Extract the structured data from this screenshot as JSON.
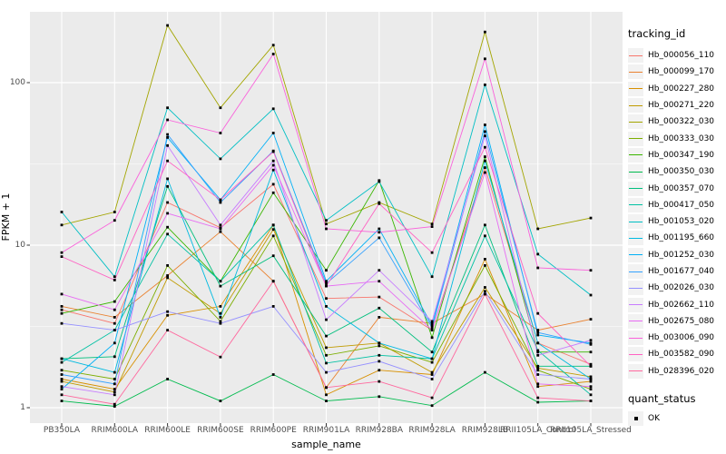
{
  "chart_data": {
    "type": "line",
    "title": "",
    "xlabel": "sample_name",
    "ylabel": "FPKM + 1",
    "y_scale": "log10",
    "ylim": [
      1,
      270
    ],
    "y_ticks": [
      {
        "label": "1",
        "value": 1
      },
      {
        "label": "10",
        "value": 10
      },
      {
        "label": "100",
        "value": 100
      }
    ],
    "y_minor_ticks": [
      3.162,
      31.62
    ],
    "grid": "on",
    "legend_position": "right",
    "categories": [
      "PB350LA",
      "RRIM600LA",
      "RRIM600LE",
      "RRIM600SE",
      "RRIM600PE",
      "RRIM901LA",
      "RRIM928BA",
      "RRIM928LA",
      "RRIM928LB",
      "RRII105LA_Control",
      "RRII105LA_Stressed"
    ],
    "series": [
      {
        "name": "Hb_000056_110",
        "color": "#F8766D",
        "values": [
          4.0,
          3.3,
          18.3,
          12.8,
          23.7,
          4.7,
          4.8,
          3.0,
          30,
          2.5,
          1.85
        ]
      },
      {
        "name": "Hb_000099_170",
        "color": "#EA8331",
        "values": [
          4.2,
          3.6,
          6.5,
          12.1,
          6.0,
          1.33,
          3.6,
          3.3,
          5.0,
          3.0,
          3.5
        ]
      },
      {
        "name": "Hb_000227_280",
        "color": "#D89000",
        "values": [
          1.5,
          1.3,
          3.7,
          4.2,
          13.3,
          1.2,
          1.7,
          1.6,
          8.2,
          1.35,
          1.45
        ]
      },
      {
        "name": "Hb_000271_220",
        "color": "#C09B00",
        "values": [
          1.45,
          1.25,
          6.3,
          3.8,
          12.5,
          2.34,
          2.5,
          1.65,
          5.5,
          1.75,
          1.55
        ]
      },
      {
        "name": "Hb_000322_030",
        "color": "#A3A500",
        "values": [
          13.3,
          16,
          225,
          70,
          170,
          13.5,
          18.3,
          13.5,
          205,
          12.6,
          14.7
        ]
      },
      {
        "name": "Hb_000333_030",
        "color": "#7CAE00",
        "values": [
          1.7,
          1.5,
          7.5,
          3.4,
          11.4,
          2.1,
          2.4,
          1.9,
          7.5,
          1.7,
          1.3
        ]
      },
      {
        "name": "Hb_000347_190",
        "color": "#39B600",
        "values": [
          3.8,
          4.5,
          12.9,
          6.0,
          21,
          7.0,
          25,
          2.7,
          35,
          2.2,
          2.2
        ]
      },
      {
        "name": "Hb_000350_030",
        "color": "#00BB4E",
        "values": [
          1.1,
          1.02,
          1.5,
          1.1,
          1.6,
          1.1,
          1.17,
          1.03,
          1.65,
          1.08,
          1.1
        ]
      },
      {
        "name": "Hb_000357_070",
        "color": "#00BF7D",
        "values": [
          2.0,
          2.06,
          23,
          5.6,
          8.6,
          2.76,
          4.1,
          2.2,
          13.3,
          1.8,
          1.8
        ]
      },
      {
        "name": "Hb_000417_050",
        "color": "#00C1A3",
        "values": [
          1.9,
          3.0,
          11.7,
          6.0,
          13.3,
          1.88,
          2.1,
          2.0,
          11.4,
          2.25,
          1.2
        ]
      },
      {
        "name": "Hb_001053_020",
        "color": "#00BFC4",
        "values": [
          16,
          6.4,
          70,
          34,
          69,
          14.2,
          24.6,
          6.4,
          97,
          8.8,
          4.93
        ]
      },
      {
        "name": "Hb_001195_660",
        "color": "#00BAE0",
        "values": [
          2.0,
          1.65,
          25.6,
          3.6,
          29,
          4.2,
          2.5,
          2.0,
          33,
          2.5,
          1.5
        ]
      },
      {
        "name": "Hb_001252_030",
        "color": "#00B0F6",
        "values": [
          1.3,
          2.5,
          46,
          19,
          49,
          6.0,
          12.6,
          3.2,
          55,
          2.8,
          2.5
        ]
      },
      {
        "name": "Hb_001677_040",
        "color": "#35A2FF",
        "values": [
          1.6,
          1.4,
          48,
          18.3,
          38,
          5.8,
          11.1,
          3.1,
          50,
          2.9,
          2.45
        ]
      },
      {
        "name": "Hb_002026_030",
        "color": "#9590FF",
        "values": [
          3.3,
          3.0,
          3.9,
          3.3,
          4.2,
          1.65,
          1.93,
          1.5,
          5.2,
          1.6,
          1.5
        ]
      },
      {
        "name": "Hb_002662_110",
        "color": "#C77CFF",
        "values": [
          1.35,
          1.2,
          41,
          13.3,
          33,
          3.48,
          7.0,
          3.4,
          47,
          2.1,
          2.6
        ]
      },
      {
        "name": "Hb_002675_080",
        "color": "#E76BF3",
        "values": [
          5.0,
          4.0,
          15.7,
          12.6,
          31,
          5.6,
          6.0,
          3.0,
          28,
          1.4,
          1.35
        ]
      },
      {
        "name": "Hb_003006_090",
        "color": "#FA62DB",
        "values": [
          9.0,
          14.2,
          59,
          49,
          150,
          12.6,
          12.0,
          13.0,
          140,
          7.25,
          7.0
        ]
      },
      {
        "name": "Hb_003582_090",
        "color": "#FF61C3",
        "values": [
          8.5,
          6.1,
          33,
          19,
          37.6,
          5.6,
          18,
          9.0,
          40,
          3.8,
          1.8
        ]
      },
      {
        "name": "Hb_028396_020",
        "color": "#FF689E",
        "values": [
          1.2,
          1.05,
          3.0,
          2.05,
          6.0,
          1.33,
          1.45,
          1.15,
          5.0,
          1.15,
          1.1
        ]
      }
    ],
    "legend": {
      "title": "tracking_id"
    },
    "quant_status": {
      "title": "quant_status",
      "items": [
        {
          "label": "OK"
        }
      ]
    }
  },
  "colors": {
    "panel_background": "#EBEBEB",
    "grid_major": "#FFFFFF",
    "grid_minor": "#F7F7F7",
    "tick_text": "#4D4D4D",
    "point": "#000000",
    "axis_tick": "#333333"
  }
}
